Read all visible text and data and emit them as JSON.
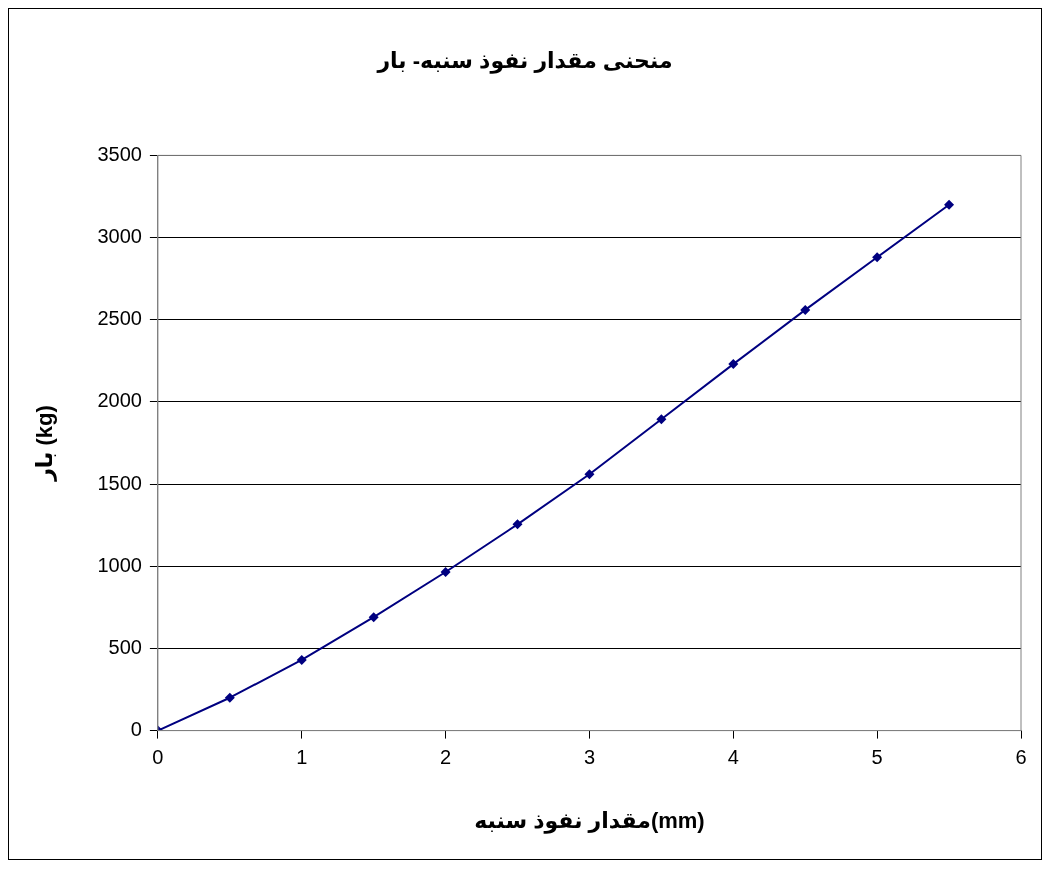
{
  "chart_data": {
    "type": "line",
    "title": "منحنی مقدار نفوذ سنبه- بار",
    "xlabel": "مقدار نفوذ سنبه(mm)",
    "ylabel": "بار (kg)",
    "x": [
      0,
      0.5,
      1,
      1.5,
      2,
      2.5,
      3,
      3.5,
      4,
      4.5,
      5,
      5.5
    ],
    "series": [
      {
        "color": "#000080",
        "values": [
          0,
          200,
          430,
          690,
          965,
          1255,
          1560,
          1895,
          2230,
          2560,
          2880,
          3200
        ]
      }
    ],
    "xlim": [
      0,
      6
    ],
    "xticks": [
      0,
      1,
      2,
      3,
      4,
      5,
      6
    ],
    "ylim": [
      0,
      3500
    ],
    "yticks": [
      0,
      500,
      1000,
      1500,
      2000,
      2500,
      3000,
      3500
    ],
    "grid": "y",
    "legend": false,
    "marker": "diamond",
    "line_style": "solid"
  }
}
